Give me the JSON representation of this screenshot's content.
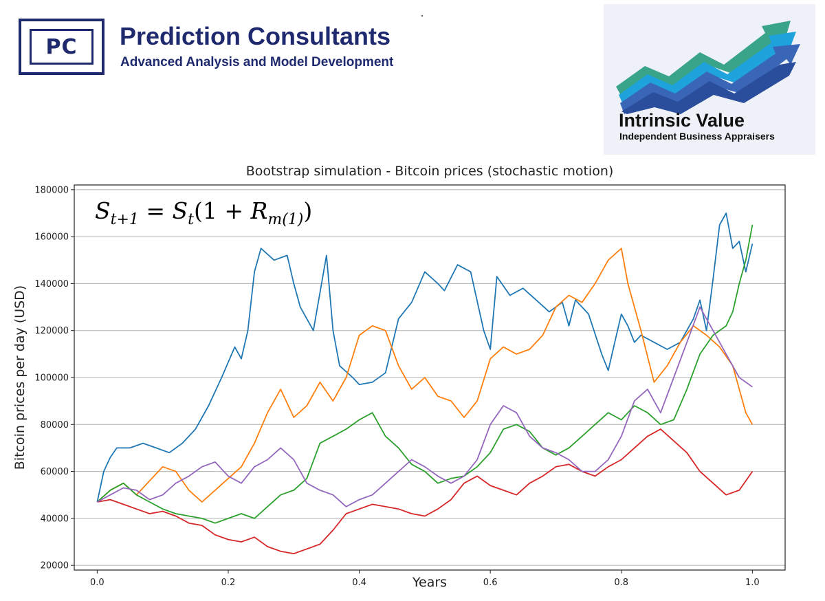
{
  "header": {
    "pc_logo_letters": "PC",
    "company_name": "Prediction Consultants",
    "company_tagline": "Advanced Analysis and Model Development"
  },
  "partner_logo": {
    "title": "Intrinsic Value",
    "subtitle": "Independent Business Appraisers",
    "colors": [
      "#3aa488",
      "#1fa3dc",
      "#3a66b8",
      "#2b4e9c"
    ]
  },
  "formula": {
    "lhs": "S",
    "lhs_sub": "t+1",
    "eq": " = ",
    "rhs_s": "S",
    "rhs_s_sub": "t",
    "paren_open": "(1 + ",
    "r": "R",
    "r_sub": "m(1)",
    "paren_close": ")"
  },
  "chart_data": {
    "type": "line",
    "title": "Bootstrap simulation - Bitcoin prices (stochastic motion)",
    "xlabel": "Years",
    "ylabel": "Bitcoin prices per day (USD)",
    "xlim": [
      -0.035,
      1.05
    ],
    "ylim": [
      18000,
      182000
    ],
    "xticks": [
      0.0,
      0.2,
      0.4,
      0.6,
      0.8,
      1.0
    ],
    "xtick_labels": [
      "0.0",
      "0.2",
      "0.4",
      "0.6",
      "0.8",
      "1.0"
    ],
    "yticks": [
      20000,
      40000,
      60000,
      80000,
      100000,
      120000,
      140000,
      160000,
      180000
    ],
    "ytick_labels": [
      "20000",
      "40000",
      "60000",
      "80000",
      "100000",
      "120000",
      "140000",
      "160000",
      "180000"
    ],
    "grid": "horizontal",
    "series": [
      {
        "color": "#1f77b4",
        "x": [
          0.0,
          0.01,
          0.02,
          0.03,
          0.05,
          0.07,
          0.09,
          0.11,
          0.13,
          0.15,
          0.17,
          0.19,
          0.21,
          0.22,
          0.23,
          0.24,
          0.25,
          0.27,
          0.29,
          0.3,
          0.31,
          0.33,
          0.35,
          0.36,
          0.37,
          0.39,
          0.4,
          0.42,
          0.44,
          0.46,
          0.48,
          0.5,
          0.52,
          0.53,
          0.55,
          0.57,
          0.59,
          0.6,
          0.61,
          0.63,
          0.65,
          0.67,
          0.69,
          0.71,
          0.72,
          0.73,
          0.75,
          0.77,
          0.78,
          0.79,
          0.8,
          0.81,
          0.82,
          0.83,
          0.85,
          0.87,
          0.89,
          0.91,
          0.92,
          0.93,
          0.94,
          0.95,
          0.96,
          0.97,
          0.98,
          0.99,
          1.0
        ],
        "values": [
          47000,
          60000,
          66000,
          70000,
          70000,
          72000,
          70000,
          68000,
          72000,
          78000,
          88000,
          100000,
          113000,
          108000,
          120000,
          145000,
          155000,
          150000,
          152000,
          140000,
          130000,
          120000,
          152000,
          120000,
          105000,
          100000,
          97000,
          98000,
          102000,
          125000,
          132000,
          145000,
          140000,
          137000,
          148000,
          145000,
          120000,
          112000,
          143000,
          135000,
          138000,
          133000,
          128000,
          132000,
          122000,
          133000,
          127000,
          110000,
          103000,
          115000,
          127000,
          122000,
          115000,
          118000,
          115000,
          112000,
          115000,
          125000,
          133000,
          120000,
          142000,
          165000,
          170000,
          155000,
          158000,
          145000,
          157000
        ]
      },
      {
        "color": "#ff7f0e",
        "x": [
          0.0,
          0.02,
          0.04,
          0.06,
          0.08,
          0.1,
          0.12,
          0.14,
          0.16,
          0.18,
          0.2,
          0.22,
          0.24,
          0.26,
          0.28,
          0.3,
          0.32,
          0.34,
          0.36,
          0.38,
          0.4,
          0.42,
          0.44,
          0.46,
          0.48,
          0.5,
          0.52,
          0.54,
          0.56,
          0.58,
          0.6,
          0.62,
          0.64,
          0.66,
          0.68,
          0.7,
          0.72,
          0.74,
          0.76,
          0.78,
          0.8,
          0.81,
          0.83,
          0.85,
          0.87,
          0.89,
          0.91,
          0.93,
          0.95,
          0.97,
          0.99,
          1.0
        ],
        "values": [
          47000,
          52000,
          55000,
          50000,
          56000,
          62000,
          60000,
          52000,
          47000,
          52000,
          57000,
          62000,
          72000,
          85000,
          95000,
          83000,
          88000,
          98000,
          90000,
          100000,
          118000,
          122000,
          120000,
          105000,
          95000,
          100000,
          92000,
          90000,
          83000,
          90000,
          108000,
          113000,
          110000,
          112000,
          118000,
          130000,
          135000,
          132000,
          140000,
          150000,
          155000,
          140000,
          120000,
          98000,
          105000,
          115000,
          122000,
          118000,
          113000,
          105000,
          85000,
          80000
        ]
      },
      {
        "color": "#2ca02c",
        "x": [
          0.0,
          0.02,
          0.04,
          0.06,
          0.08,
          0.1,
          0.12,
          0.14,
          0.16,
          0.18,
          0.2,
          0.22,
          0.24,
          0.26,
          0.28,
          0.3,
          0.32,
          0.34,
          0.36,
          0.38,
          0.4,
          0.42,
          0.44,
          0.46,
          0.48,
          0.5,
          0.52,
          0.54,
          0.56,
          0.58,
          0.6,
          0.62,
          0.64,
          0.66,
          0.68,
          0.7,
          0.72,
          0.74,
          0.76,
          0.78,
          0.8,
          0.82,
          0.84,
          0.86,
          0.88,
          0.9,
          0.92,
          0.94,
          0.96,
          0.97,
          0.98,
          0.99,
          1.0
        ],
        "values": [
          47000,
          52000,
          55000,
          50000,
          47000,
          44000,
          42000,
          41000,
          40000,
          38000,
          40000,
          42000,
          40000,
          45000,
          50000,
          52000,
          57000,
          72000,
          75000,
          78000,
          82000,
          85000,
          75000,
          70000,
          63000,
          60000,
          55000,
          57000,
          58000,
          62000,
          68000,
          78000,
          80000,
          77000,
          70000,
          67000,
          70000,
          75000,
          80000,
          85000,
          82000,
          88000,
          85000,
          80000,
          82000,
          95000,
          110000,
          118000,
          122000,
          128000,
          140000,
          150000,
          165000
        ]
      },
      {
        "color": "#d62728",
        "x": [
          0.0,
          0.02,
          0.04,
          0.06,
          0.08,
          0.1,
          0.12,
          0.14,
          0.16,
          0.18,
          0.2,
          0.22,
          0.24,
          0.26,
          0.28,
          0.3,
          0.32,
          0.34,
          0.36,
          0.38,
          0.4,
          0.42,
          0.44,
          0.46,
          0.48,
          0.5,
          0.52,
          0.54,
          0.56,
          0.58,
          0.6,
          0.62,
          0.64,
          0.66,
          0.68,
          0.7,
          0.72,
          0.74,
          0.76,
          0.78,
          0.8,
          0.82,
          0.84,
          0.86,
          0.88,
          0.9,
          0.92,
          0.94,
          0.96,
          0.98,
          1.0
        ],
        "values": [
          47000,
          48000,
          46000,
          44000,
          42000,
          43000,
          41000,
          38000,
          37000,
          33000,
          31000,
          30000,
          32000,
          28000,
          26000,
          25000,
          27000,
          29000,
          35000,
          42000,
          44000,
          46000,
          45000,
          44000,
          42000,
          41000,
          44000,
          48000,
          55000,
          58000,
          54000,
          52000,
          50000,
          55000,
          58000,
          62000,
          63000,
          60000,
          58000,
          62000,
          65000,
          70000,
          75000,
          78000,
          73000,
          68000,
          60000,
          55000,
          50000,
          52000,
          60000
        ]
      },
      {
        "color": "#9467bd",
        "x": [
          0.0,
          0.02,
          0.04,
          0.06,
          0.08,
          0.1,
          0.12,
          0.14,
          0.16,
          0.18,
          0.2,
          0.22,
          0.24,
          0.26,
          0.28,
          0.3,
          0.32,
          0.34,
          0.36,
          0.38,
          0.4,
          0.42,
          0.44,
          0.46,
          0.48,
          0.5,
          0.52,
          0.54,
          0.56,
          0.58,
          0.6,
          0.62,
          0.64,
          0.66,
          0.68,
          0.7,
          0.72,
          0.74,
          0.76,
          0.78,
          0.8,
          0.82,
          0.84,
          0.86,
          0.88,
          0.9,
          0.92,
          0.94,
          0.96,
          0.98,
          1.0
        ],
        "values": [
          47000,
          50000,
          53000,
          52000,
          48000,
          50000,
          55000,
          58000,
          62000,
          64000,
          58000,
          55000,
          62000,
          65000,
          70000,
          65000,
          55000,
          52000,
          50000,
          45000,
          48000,
          50000,
          55000,
          60000,
          65000,
          62000,
          58000,
          55000,
          58000,
          65000,
          80000,
          88000,
          85000,
          75000,
          70000,
          68000,
          65000,
          60000,
          60000,
          65000,
          75000,
          90000,
          95000,
          85000,
          100000,
          115000,
          130000,
          120000,
          110000,
          100000,
          96000
        ]
      }
    ]
  }
}
